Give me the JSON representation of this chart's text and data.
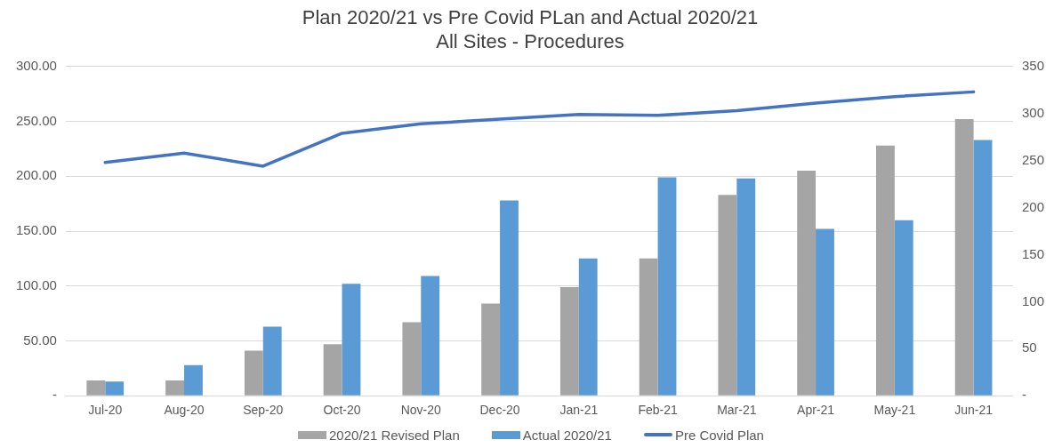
{
  "chart_data": {
    "type": "bar",
    "title": "Plan 2020/21 vs Pre Covid PLan and Actual 2020/21",
    "subtitle": "All Sites - Procedures",
    "categories": [
      "Jul-20",
      "Aug-20",
      "Sep-20",
      "Oct-20",
      "Nov-20",
      "Dec-20",
      "Jan-21",
      "Feb-21",
      "Mar-21",
      "Apr-21",
      "May-21",
      "Jun-21"
    ],
    "series": [
      {
        "name": "2020/21 Revised Plan",
        "color": "#a5a5a5",
        "values": [
          14,
          14,
          41,
          47,
          67,
          84,
          99,
          125,
          183,
          205,
          228,
          252
        ]
      },
      {
        "name": "Actual 2020/21",
        "color": "#5b9bd5",
        "values": [
          13,
          28,
          63,
          102,
          109,
          178,
          125,
          199,
          198,
          152,
          160,
          233
        ]
      },
      {
        "name": "Pre Covid Plan",
        "type": "line",
        "axis": "y2",
        "color": "#4472c4",
        "values": [
          248,
          258,
          244,
          279,
          289,
          294,
          299,
          298,
          303,
          311,
          318,
          323
        ]
      }
    ],
    "ylim": [
      0,
      300
    ],
    "yticks": [
      {
        "value": 0,
        "label": "-"
      },
      {
        "value": 50,
        "label": "50.00"
      },
      {
        "value": 100,
        "label": "100.00"
      },
      {
        "value": 150,
        "label": "150.00"
      },
      {
        "value": 200,
        "label": "200.00"
      },
      {
        "value": 250,
        "label": "250.00"
      },
      {
        "value": 300,
        "label": "300.00"
      }
    ],
    "y2lim": [
      0,
      350
    ],
    "y2ticks": [
      {
        "value": 0,
        "label": "-"
      },
      50,
      100,
      150,
      200,
      250,
      300,
      350
    ],
    "grid": "y",
    "legend": "bottom",
    "marker": "none"
  }
}
